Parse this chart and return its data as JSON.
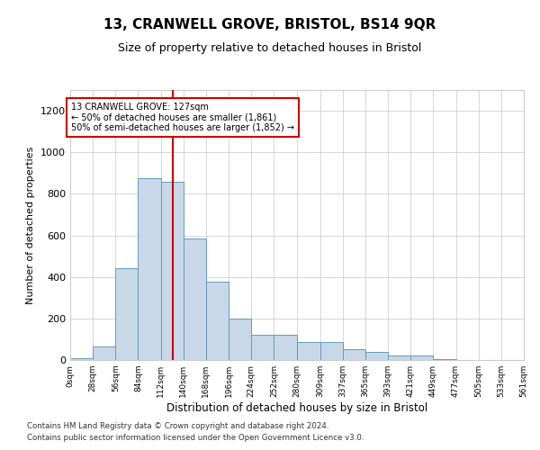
{
  "title": "13, CRANWELL GROVE, BRISTOL, BS14 9QR",
  "subtitle": "Size of property relative to detached houses in Bristol",
  "xlabel": "Distribution of detached houses by size in Bristol",
  "ylabel": "Number of detached properties",
  "footnote1": "Contains HM Land Registry data © Crown copyright and database right 2024.",
  "footnote2": "Contains public sector information licensed under the Open Government Licence v3.0.",
  "bar_color": "#c8d8e8",
  "bar_edge_color": "#6699bb",
  "grid_color": "#d0d0d0",
  "redline_color": "#cc0000",
  "redline_x": 127,
  "annotation_text": "13 CRANWELL GROVE: 127sqm\n← 50% of detached houses are smaller (1,861)\n50% of semi-detached houses are larger (1,852) →",
  "annotation_box_color": "#ffffff",
  "annotation_box_edge": "#cc0000",
  "bins": [
    0,
    28,
    56,
    84,
    112,
    140,
    168,
    196,
    224,
    252,
    280,
    309,
    337,
    365,
    393,
    421,
    449,
    477,
    505,
    533,
    561
  ],
  "bin_labels": [
    "0sqm",
    "28sqm",
    "56sqm",
    "84sqm",
    "112sqm",
    "140sqm",
    "168sqm",
    "196sqm",
    "224sqm",
    "252sqm",
    "280sqm",
    "309sqm",
    "337sqm",
    "365sqm",
    "393sqm",
    "421sqm",
    "449sqm",
    "477sqm",
    "505sqm",
    "533sqm",
    "561sqm"
  ],
  "bar_heights": [
    10,
    65,
    440,
    875,
    860,
    585,
    375,
    200,
    120,
    120,
    85,
    85,
    50,
    38,
    20,
    20,
    5,
    2,
    2,
    2
  ],
  "ylim": [
    0,
    1300
  ],
  "yticks": [
    0,
    200,
    400,
    600,
    800,
    1000,
    1200
  ]
}
